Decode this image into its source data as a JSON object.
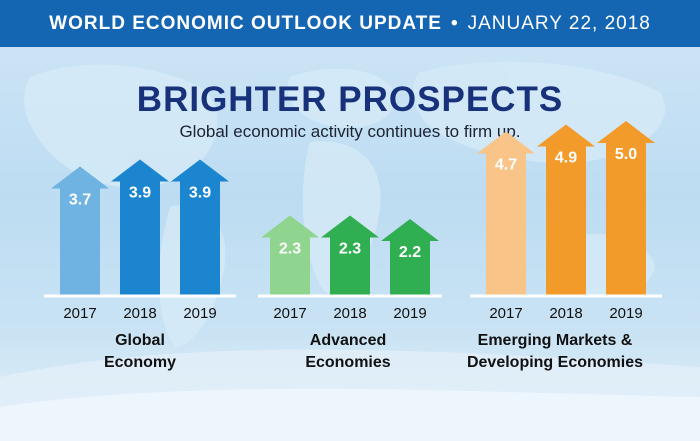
{
  "header": {
    "left": "WORLD ECONOMIC OUTLOOK UPDATE",
    "separator": "•",
    "right": "JANUARY 22, 2018"
  },
  "title": "BRIGHTER PROSPECTS",
  "subtitle": "Global economic activity continues to firm up.",
  "colors": {
    "header_bg": "#1466b3",
    "title": "#17327a",
    "global": [
      "#6fb3e2",
      "#1b86cf",
      "#1b86cf"
    ],
    "advanced": [
      "#8fd48f",
      "#2fae52",
      "#2fae52"
    ],
    "emerging": [
      "#f8c488",
      "#f39b2a",
      "#f39b2a"
    ]
  },
  "chart_data": [
    {
      "type": "bar",
      "group_label": [
        "Global",
        "Economy"
      ],
      "categories": [
        "2017",
        "2018",
        "2019"
      ],
      "values": [
        3.7,
        3.9,
        3.9
      ]
    },
    {
      "type": "bar",
      "group_label": [
        "Advanced",
        "Economies"
      ],
      "categories": [
        "2017",
        "2018",
        "2019"
      ],
      "values": [
        2.3,
        2.3,
        2.2
      ]
    },
    {
      "type": "bar",
      "group_label": [
        "Emerging Markets &",
        "Developing Economies"
      ],
      "categories": [
        "2017",
        "2018",
        "2019"
      ],
      "values": [
        4.7,
        4.9,
        5.0
      ]
    }
  ]
}
